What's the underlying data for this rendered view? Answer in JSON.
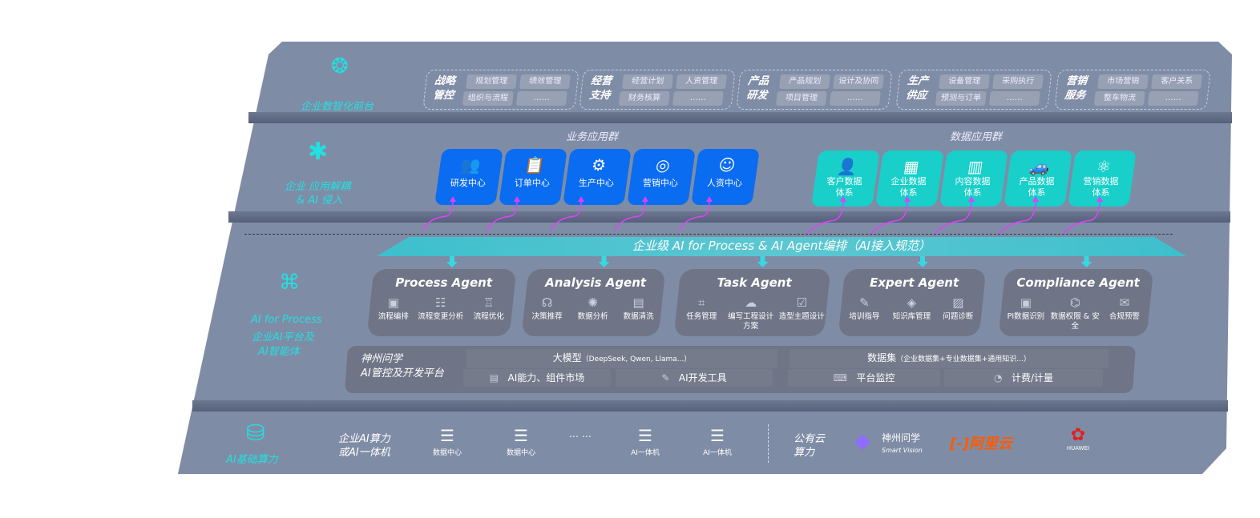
{
  "front_layer": {
    "label": "企业数智化前台",
    "icon": "brain-icon",
    "groups": [
      {
        "title": "战略管控",
        "items": [
          "规划管理",
          "绩效管理",
          "组织与流程",
          "……"
        ]
      },
      {
        "title": "经营支持",
        "items": [
          "经营计划",
          "人资管理",
          "财务核算",
          "……"
        ]
      },
      {
        "title": "产品研发",
        "items": [
          "产品规划",
          "设计及协同",
          "项目管理",
          "……"
        ]
      },
      {
        "title": "生产供应",
        "items": [
          "设备管理",
          "采购执行",
          "预测与订单",
          "……"
        ]
      },
      {
        "title": "营销服务",
        "items": [
          "市场营销",
          "客户关系",
          "整车物流",
          "……"
        ]
      }
    ]
  },
  "app_layer": {
    "label_1": "企业 应用解耦",
    "label_2": "& AI 侵入",
    "icon": "molecule-icon",
    "business_title": "业务应用群",
    "business_color": "#0a6cf0",
    "business_apps": [
      {
        "label": "研发中心",
        "icon": "users-icon"
      },
      {
        "label": "订单中心",
        "icon": "clipboard-icon"
      },
      {
        "label": "生产中心",
        "icon": "factory-icon"
      },
      {
        "label": "营销中心",
        "icon": "target-icon"
      },
      {
        "label": "人资中心",
        "icon": "person-icon"
      }
    ],
    "data_title": "数据应用群",
    "data_color": "#18cfc9",
    "data_apps": [
      {
        "label": "客户数据体系",
        "icon": "user-icon"
      },
      {
        "label": "企业数据体系",
        "icon": "building-icon"
      },
      {
        "label": "内容数据体系",
        "icon": "books-icon"
      },
      {
        "label": "产品数据体系",
        "icon": "car-icon"
      },
      {
        "label": "营销数据体系",
        "icon": "atom-icon"
      }
    ]
  },
  "orchestration": "企业级 AI for Process & AI Agent编排（AI接入规范）",
  "ai_layer": {
    "label_1": "AI for Process",
    "label_2": "企业AI平台及",
    "label_3": "AI智能体",
    "icon": "face-scan-icon",
    "agents": [
      {
        "name": "Process Agent",
        "items": [
          "流程编排",
          "流程变更分析",
          "流程优化"
        ]
      },
      {
        "name": "Analysis Agent",
        "items": [
          "决策推荐",
          "数据分析",
          "数据清洗"
        ]
      },
      {
        "name": "Task Agent",
        "items": [
          "任务管理",
          "编写工程设计方案",
          "造型主题设计"
        ]
      },
      {
        "name": "Expert Agent",
        "items": [
          "培训指导",
          "知识库管理",
          "问题诊断"
        ]
      },
      {
        "name": "Compliance Agent",
        "items": [
          "PI数据识别",
          "数据权限 & 安全",
          "合规预警"
        ]
      }
    ],
    "platform": {
      "title_1": "神州问学",
      "title_2": "AI管控及开发平台",
      "model_title": "大模型",
      "model_note": "（DeepSeek, Qwen, Llama...）",
      "dataset_title": "数据集",
      "dataset_note": "（企业数据集+专业数据集+通用知识...）",
      "tools": [
        "AI能力、组件市场",
        "AI开发工具",
        "平台监控",
        "计费/计量"
      ]
    }
  },
  "infra_layer": {
    "label": "AI基础算力",
    "icon": "database-icon",
    "enterprise_1": "企业AI算力",
    "enterprise_2": "或AI一体机",
    "servers": [
      "数据中心",
      "数据中心",
      "AI一体机",
      "AI一体机"
    ],
    "ellipsis": "… …",
    "public_1": "公有云",
    "public_2": "算力",
    "vendors": {
      "smartvision_cn": "神州问学",
      "smartvision_en": "Smart Vision",
      "aliyun": "阿里云",
      "huawei": "HUAWEI"
    },
    "aliyun_color": "#ff5a00",
    "huawei_color": "#e02020"
  }
}
